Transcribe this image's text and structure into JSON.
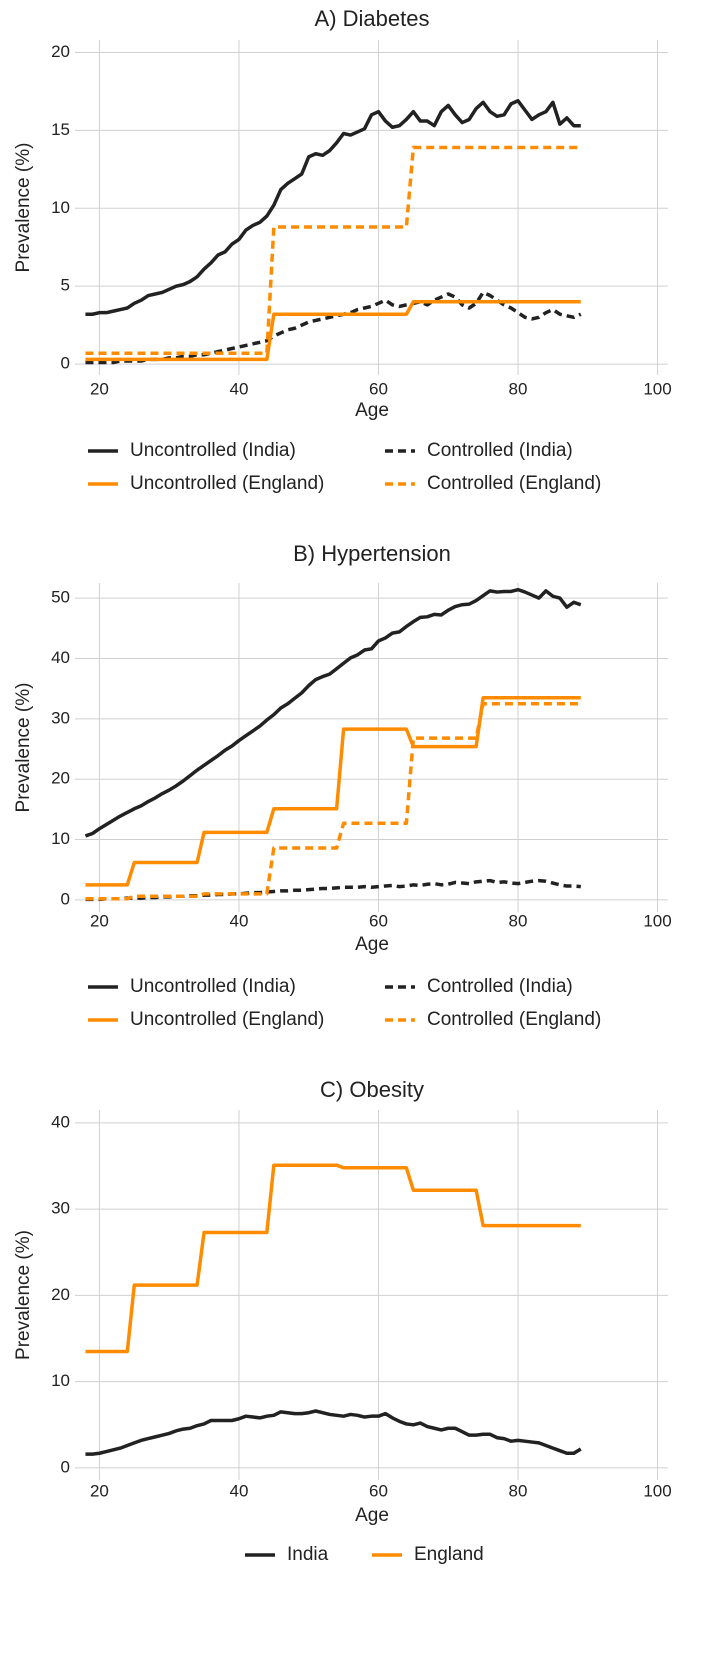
{
  "chart_data": [
    {
      "type": "line",
      "title": "A) Diabetes",
      "x_label": "Age",
      "y_label": "Prevalence (%)",
      "x": [
        18,
        19,
        20,
        21,
        22,
        23,
        24,
        25,
        26,
        27,
        28,
        29,
        30,
        31,
        32,
        33,
        34,
        35,
        36,
        37,
        38,
        39,
        40,
        41,
        42,
        43,
        44,
        45,
        46,
        47,
        48,
        49,
        50,
        51,
        52,
        53,
        54,
        55,
        56,
        57,
        58,
        59,
        60,
        61,
        62,
        63,
        64,
        65,
        66,
        67,
        68,
        69,
        70,
        71,
        72,
        73,
        74,
        75,
        76,
        77,
        78,
        79,
        80,
        81,
        82,
        83,
        84,
        85,
        86,
        87,
        88,
        89
      ],
      "xlim": [
        16.5,
        101.5
      ],
      "xticks": [
        20,
        40,
        60,
        80,
        100
      ],
      "ylim": [
        -0.7,
        20.8
      ],
      "yticks": [
        0,
        5,
        10,
        15,
        20
      ],
      "grid": true,
      "series": [
        {
          "name": "Uncontrolled (India)",
          "color": "#222222",
          "linestyle": "solid",
          "values": [
            3.2,
            3.2,
            3.3,
            3.3,
            3.4,
            3.5,
            3.6,
            3.9,
            4.1,
            4.4,
            4.5,
            4.6,
            4.8,
            5.0,
            5.1,
            5.3,
            5.6,
            6.1,
            6.5,
            7.0,
            7.2,
            7.7,
            8.0,
            8.6,
            8.9,
            9.1,
            9.5,
            10.2,
            11.2,
            11.6,
            11.9,
            12.2,
            13.3,
            13.5,
            13.4,
            13.7,
            14.2,
            14.8,
            14.7,
            14.9,
            15.1,
            16.0,
            16.2,
            15.6,
            15.2,
            15.3,
            15.7,
            16.2,
            15.6,
            15.6,
            15.3,
            16.2,
            16.6,
            16.0,
            15.5,
            15.7,
            16.4,
            16.8,
            16.2,
            15.9,
            16.0,
            16.7,
            16.9,
            16.3,
            15.7,
            16.0,
            16.2,
            16.8,
            15.4,
            15.8,
            15.3,
            15.3
          ]
        },
        {
          "name": "Controlled (India)",
          "color": "#222222",
          "linestyle": "dashed",
          "values": [
            0.1,
            0.1,
            0.1,
            0.1,
            0.1,
            0.2,
            0.2,
            0.2,
            0.2,
            0.3,
            0.3,
            0.3,
            0.4,
            0.4,
            0.5,
            0.5,
            0.6,
            0.6,
            0.7,
            0.8,
            0.9,
            1.0,
            1.1,
            1.2,
            1.3,
            1.4,
            1.5,
            1.8,
            2.0,
            2.2,
            2.3,
            2.5,
            2.7,
            2.8,
            2.9,
            3.0,
            3.1,
            3.2,
            3.3,
            3.5,
            3.6,
            3.7,
            3.9,
            4.1,
            3.8,
            3.7,
            3.8,
            3.9,
            4.0,
            3.8,
            4.1,
            4.3,
            4.5,
            4.3,
            3.8,
            3.6,
            3.9,
            4.6,
            4.4,
            4.1,
            3.8,
            3.6,
            3.3,
            3.0,
            2.9,
            3.0,
            3.3,
            3.5,
            3.2,
            3.1,
            3.0,
            3.2
          ]
        },
        {
          "name": "Uncontrolled (England)",
          "color": "#ff8c00",
          "linestyle": "solid",
          "values": [
            0.3,
            0.3,
            0.3,
            0.3,
            0.3,
            0.3,
            0.3,
            0.3,
            0.3,
            0.3,
            0.3,
            0.3,
            0.3,
            0.3,
            0.3,
            0.3,
            0.3,
            0.3,
            0.3,
            0.3,
            0.3,
            0.3,
            0.3,
            0.3,
            0.3,
            0.3,
            0.3,
            3.2,
            3.2,
            3.2,
            3.2,
            3.2,
            3.2,
            3.2,
            3.2,
            3.2,
            3.2,
            3.2,
            3.2,
            3.2,
            3.2,
            3.2,
            3.2,
            3.2,
            3.2,
            3.2,
            3.2,
            4.0,
            4.0,
            4.0,
            4.0,
            4.0,
            4.0,
            4.0,
            4.0,
            4.0,
            4.0,
            4.0,
            4.0,
            4.0,
            4.0,
            4.0,
            4.0,
            4.0,
            4.0,
            4.0,
            4.0,
            4.0,
            4.0,
            4.0,
            4.0,
            4.0
          ]
        },
        {
          "name": "Controlled (England)",
          "color": "#ff8c00",
          "linestyle": "dashed",
          "values": [
            0.7,
            0.7,
            0.7,
            0.7,
            0.7,
            0.7,
            0.7,
            0.7,
            0.7,
            0.7,
            0.7,
            0.7,
            0.7,
            0.7,
            0.7,
            0.7,
            0.7,
            0.7,
            0.7,
            0.7,
            0.7,
            0.7,
            0.7,
            0.7,
            0.7,
            0.7,
            0.7,
            8.8,
            8.8,
            8.8,
            8.8,
            8.8,
            8.8,
            8.8,
            8.8,
            8.8,
            8.8,
            8.8,
            8.8,
            8.8,
            8.8,
            8.8,
            8.8,
            8.8,
            8.8,
            8.8,
            8.8,
            13.9,
            13.9,
            13.9,
            13.9,
            13.9,
            13.9,
            13.9,
            13.9,
            13.9,
            13.9,
            13.9,
            13.9,
            13.9,
            13.9,
            13.9,
            13.9,
            13.9,
            13.9,
            13.9,
            13.9,
            13.9,
            13.9,
            13.9,
            13.9,
            13.9
          ]
        }
      ]
    },
    {
      "type": "line",
      "title": "B) Hypertension",
      "x_label": "Age",
      "y_label": "Prevalence (%)",
      "x": [
        18,
        19,
        20,
        21,
        22,
        23,
        24,
        25,
        26,
        27,
        28,
        29,
        30,
        31,
        32,
        33,
        34,
        35,
        36,
        37,
        38,
        39,
        40,
        41,
        42,
        43,
        44,
        45,
        46,
        47,
        48,
        49,
        50,
        51,
        52,
        53,
        54,
        55,
        56,
        57,
        58,
        59,
        60,
        61,
        62,
        63,
        64,
        65,
        66,
        67,
        68,
        69,
        70,
        71,
        72,
        73,
        74,
        75,
        76,
        77,
        78,
        79,
        80,
        81,
        82,
        83,
        84,
        85,
        86,
        87,
        88,
        89
      ],
      "xlim": [
        16.5,
        101.5
      ],
      "xticks": [
        20,
        40,
        60,
        80,
        100
      ],
      "ylim": [
        -2,
        52.5
      ],
      "yticks": [
        0,
        10,
        20,
        30,
        40,
        50
      ],
      "grid": true,
      "series": [
        {
          "name": "Uncontrolled (India)",
          "color": "#222222",
          "linestyle": "solid",
          "values": [
            10.6,
            11.0,
            11.8,
            12.5,
            13.2,
            13.9,
            14.5,
            15.1,
            15.6,
            16.3,
            16.9,
            17.6,
            18.2,
            18.9,
            19.7,
            20.6,
            21.5,
            22.3,
            23.1,
            23.9,
            24.8,
            25.5,
            26.4,
            27.2,
            28.0,
            28.8,
            29.8,
            30.7,
            31.8,
            32.5,
            33.4,
            34.3,
            35.5,
            36.5,
            37.0,
            37.4,
            38.3,
            39.2,
            40.1,
            40.6,
            41.4,
            41.6,
            42.9,
            43.4,
            44.2,
            44.4,
            45.3,
            46.1,
            46.8,
            46.9,
            47.3,
            47.2,
            48.0,
            48.6,
            48.9,
            49.0,
            49.6,
            50.4,
            51.2,
            51.0,
            51.1,
            51.1,
            51.4,
            51.0,
            50.5,
            50.0,
            51.2,
            50.3,
            50.0,
            48.5,
            49.3,
            48.9
          ]
        },
        {
          "name": "Controlled (India)",
          "color": "#222222",
          "linestyle": "dashed",
          "values": [
            0.1,
            0.1,
            0.1,
            0.2,
            0.2,
            0.2,
            0.3,
            0.3,
            0.3,
            0.4,
            0.4,
            0.5,
            0.5,
            0.6,
            0.6,
            0.7,
            0.7,
            0.8,
            0.8,
            0.9,
            0.9,
            1.0,
            1.0,
            1.1,
            1.2,
            1.2,
            1.3,
            1.4,
            1.5,
            1.5,
            1.6,
            1.6,
            1.7,
            1.8,
            1.9,
            1.9,
            2.0,
            2.1,
            2.1,
            2.1,
            2.2,
            2.1,
            2.2,
            2.3,
            2.4,
            2.2,
            2.3,
            2.5,
            2.4,
            2.6,
            2.7,
            2.5,
            2.6,
            2.9,
            2.8,
            2.7,
            3.0,
            3.1,
            3.2,
            2.9,
            3.0,
            2.8,
            2.7,
            2.9,
            3.1,
            3.2,
            3.1,
            2.8,
            2.5,
            2.3,
            2.3,
            2.2
          ]
        },
        {
          "name": "Uncontrolled (England)",
          "color": "#ff8c00",
          "linestyle": "solid",
          "values": [
            2.5,
            2.5,
            2.5,
            2.5,
            2.5,
            2.5,
            2.5,
            6.2,
            6.2,
            6.2,
            6.2,
            6.2,
            6.2,
            6.2,
            6.2,
            6.2,
            6.2,
            11.2,
            11.2,
            11.2,
            11.2,
            11.2,
            11.2,
            11.2,
            11.2,
            11.2,
            11.2,
            15.1,
            15.1,
            15.1,
            15.1,
            15.1,
            15.1,
            15.1,
            15.1,
            15.1,
            15.1,
            28.3,
            28.3,
            28.3,
            28.3,
            28.3,
            28.3,
            28.3,
            28.3,
            28.3,
            28.3,
            25.4,
            25.4,
            25.4,
            25.4,
            25.4,
            25.4,
            25.4,
            25.4,
            25.4,
            25.4,
            33.5,
            33.5,
            33.5,
            33.5,
            33.5,
            33.5,
            33.5,
            33.5,
            33.5,
            33.5,
            33.5,
            33.5,
            33.5,
            33.5,
            33.5
          ]
        },
        {
          "name": "Controlled (England)",
          "color": "#ff8c00",
          "linestyle": "dashed",
          "values": [
            0.2,
            0.2,
            0.2,
            0.2,
            0.2,
            0.2,
            0.2,
            0.6,
            0.6,
            0.6,
            0.6,
            0.6,
            0.6,
            0.6,
            0.6,
            0.6,
            0.6,
            1.0,
            1.0,
            1.0,
            1.0,
            1.0,
            1.0,
            1.0,
            1.0,
            1.0,
            1.0,
            8.6,
            8.6,
            8.6,
            8.6,
            8.6,
            8.6,
            8.6,
            8.6,
            8.6,
            8.6,
            12.7,
            12.7,
            12.7,
            12.7,
            12.7,
            12.7,
            12.7,
            12.7,
            12.7,
            12.7,
            26.8,
            26.8,
            26.8,
            26.8,
            26.8,
            26.8,
            26.8,
            26.8,
            26.8,
            26.8,
            32.5,
            32.5,
            32.5,
            32.5,
            32.5,
            32.5,
            32.5,
            32.5,
            32.5,
            32.5,
            32.5,
            32.5,
            32.5,
            32.5,
            32.5
          ]
        }
      ]
    },
    {
      "type": "line",
      "title": "C) Obesity",
      "x_label": "Age",
      "y_label": "Prevalence (%)",
      "x": [
        18,
        19,
        20,
        21,
        22,
        23,
        24,
        25,
        26,
        27,
        28,
        29,
        30,
        31,
        32,
        33,
        34,
        35,
        36,
        37,
        38,
        39,
        40,
        41,
        42,
        43,
        44,
        45,
        46,
        47,
        48,
        49,
        50,
        51,
        52,
        53,
        54,
        55,
        56,
        57,
        58,
        59,
        60,
        61,
        62,
        63,
        64,
        65,
        66,
        67,
        68,
        69,
        70,
        71,
        72,
        73,
        74,
        75,
        76,
        77,
        78,
        79,
        80,
        81,
        82,
        83,
        84,
        85,
        86,
        87,
        88,
        89
      ],
      "xlim": [
        16.5,
        101.5
      ],
      "xticks": [
        20,
        40,
        60,
        80,
        100
      ],
      "ylim": [
        -1.4,
        41.5
      ],
      "yticks": [
        0,
        10,
        20,
        30,
        40
      ],
      "grid": true,
      "series": [
        {
          "name": "India",
          "color": "#222222",
          "linestyle": "solid",
          "values": [
            1.6,
            1.6,
            1.7,
            1.9,
            2.1,
            2.3,
            2.6,
            2.9,
            3.2,
            3.4,
            3.6,
            3.8,
            4.0,
            4.3,
            4.5,
            4.6,
            4.9,
            5.1,
            5.5,
            5.5,
            5.5,
            5.5,
            5.7,
            6.0,
            5.9,
            5.8,
            6.0,
            6.1,
            6.5,
            6.4,
            6.3,
            6.3,
            6.4,
            6.6,
            6.4,
            6.2,
            6.1,
            6.0,
            6.2,
            6.1,
            5.9,
            6.0,
            6.0,
            6.3,
            5.8,
            5.4,
            5.1,
            5.0,
            5.2,
            4.8,
            4.6,
            4.4,
            4.6,
            4.6,
            4.2,
            3.8,
            3.8,
            3.9,
            3.9,
            3.5,
            3.4,
            3.1,
            3.2,
            3.1,
            3.0,
            2.9,
            2.6,
            2.3,
            2.0,
            1.7,
            1.7,
            2.2
          ]
        },
        {
          "name": "England",
          "color": "#ff8c00",
          "linestyle": "solid",
          "values": [
            13.5,
            13.5,
            13.5,
            13.5,
            13.5,
            13.5,
            13.5,
            21.2,
            21.2,
            21.2,
            21.2,
            21.2,
            21.2,
            21.2,
            21.2,
            21.2,
            21.2,
            27.3,
            27.3,
            27.3,
            27.3,
            27.3,
            27.3,
            27.3,
            27.3,
            27.3,
            27.3,
            35.1,
            35.1,
            35.1,
            35.1,
            35.1,
            35.1,
            35.1,
            35.1,
            35.1,
            35.1,
            34.8,
            34.8,
            34.8,
            34.8,
            34.8,
            34.8,
            34.8,
            34.8,
            34.8,
            34.8,
            32.2,
            32.2,
            32.2,
            32.2,
            32.2,
            32.2,
            32.2,
            32.2,
            32.2,
            32.2,
            28.1,
            28.1,
            28.1,
            28.1,
            28.1,
            28.1,
            28.1,
            28.1,
            28.1,
            28.1,
            28.1,
            28.1,
            28.1,
            28.1,
            28.1
          ]
        }
      ]
    }
  ]
}
